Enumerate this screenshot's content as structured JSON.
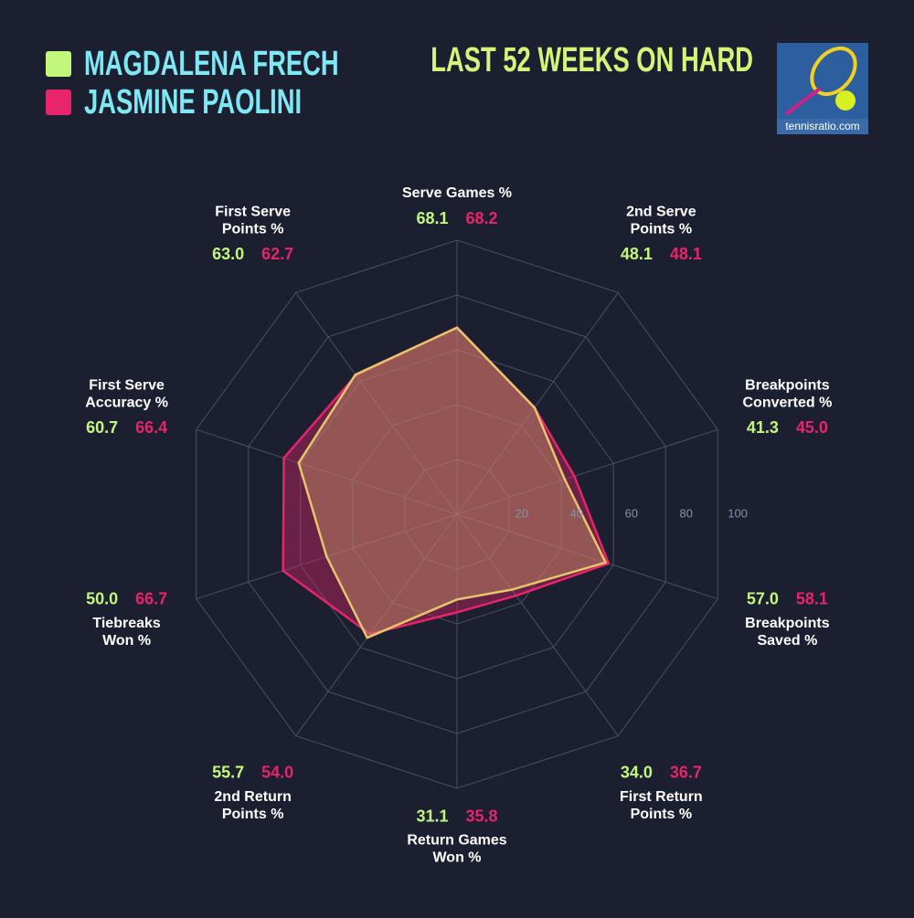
{
  "chart_data": {
    "type": "radar",
    "title": "LAST 52 WEEKS ON HARD",
    "source": "tennisratio.com",
    "categories": [
      [
        "Serve Games %"
      ],
      [
        "2nd Serve",
        "Points %"
      ],
      [
        "Breakpoints",
        "Converted %"
      ],
      [
        "Breakpoints",
        "Saved %"
      ],
      [
        "First Return",
        "Points %"
      ],
      [
        "Return Games",
        "Won %"
      ],
      [
        "2nd Return",
        "Points %"
      ],
      [
        "Tiebreaks",
        "Won %"
      ],
      [
        "First Serve",
        "Accuracy %"
      ],
      [
        "First Serve",
        "Points %"
      ]
    ],
    "series": [
      {
        "name": "MAGDALENA FRECH",
        "color": "#c3f77b",
        "line_color": "#e6c56c",
        "fill_color": "rgba(205,160,105,0.42)",
        "values": [
          68.1,
          48.1,
          41.3,
          57.0,
          34.0,
          31.1,
          55.7,
          50.0,
          60.7,
          63.0
        ],
        "value_labels": [
          "68.1",
          "48.1",
          "41.3",
          "57.0",
          "34.0",
          "31.1",
          "55.7",
          "50.0",
          "60.7",
          "63.0"
        ]
      },
      {
        "name": "JASMINE PAOLINI",
        "color": "#e8246a",
        "line_color": "#e8246a",
        "fill_color": "rgba(232,36,106,0.38)",
        "values": [
          68.2,
          48.1,
          45.0,
          58.1,
          36.7,
          35.8,
          54.0,
          66.7,
          66.4,
          62.7
        ],
        "value_labels": [
          "68.2",
          "48.1",
          "45.0",
          "58.1",
          "36.7",
          "35.8",
          "54.0",
          "66.7",
          "66.4",
          "62.7"
        ]
      }
    ],
    "rlim": [
      0,
      100
    ],
    "rticks": [
      20,
      40,
      60,
      80,
      100
    ],
    "grid": true
  }
}
